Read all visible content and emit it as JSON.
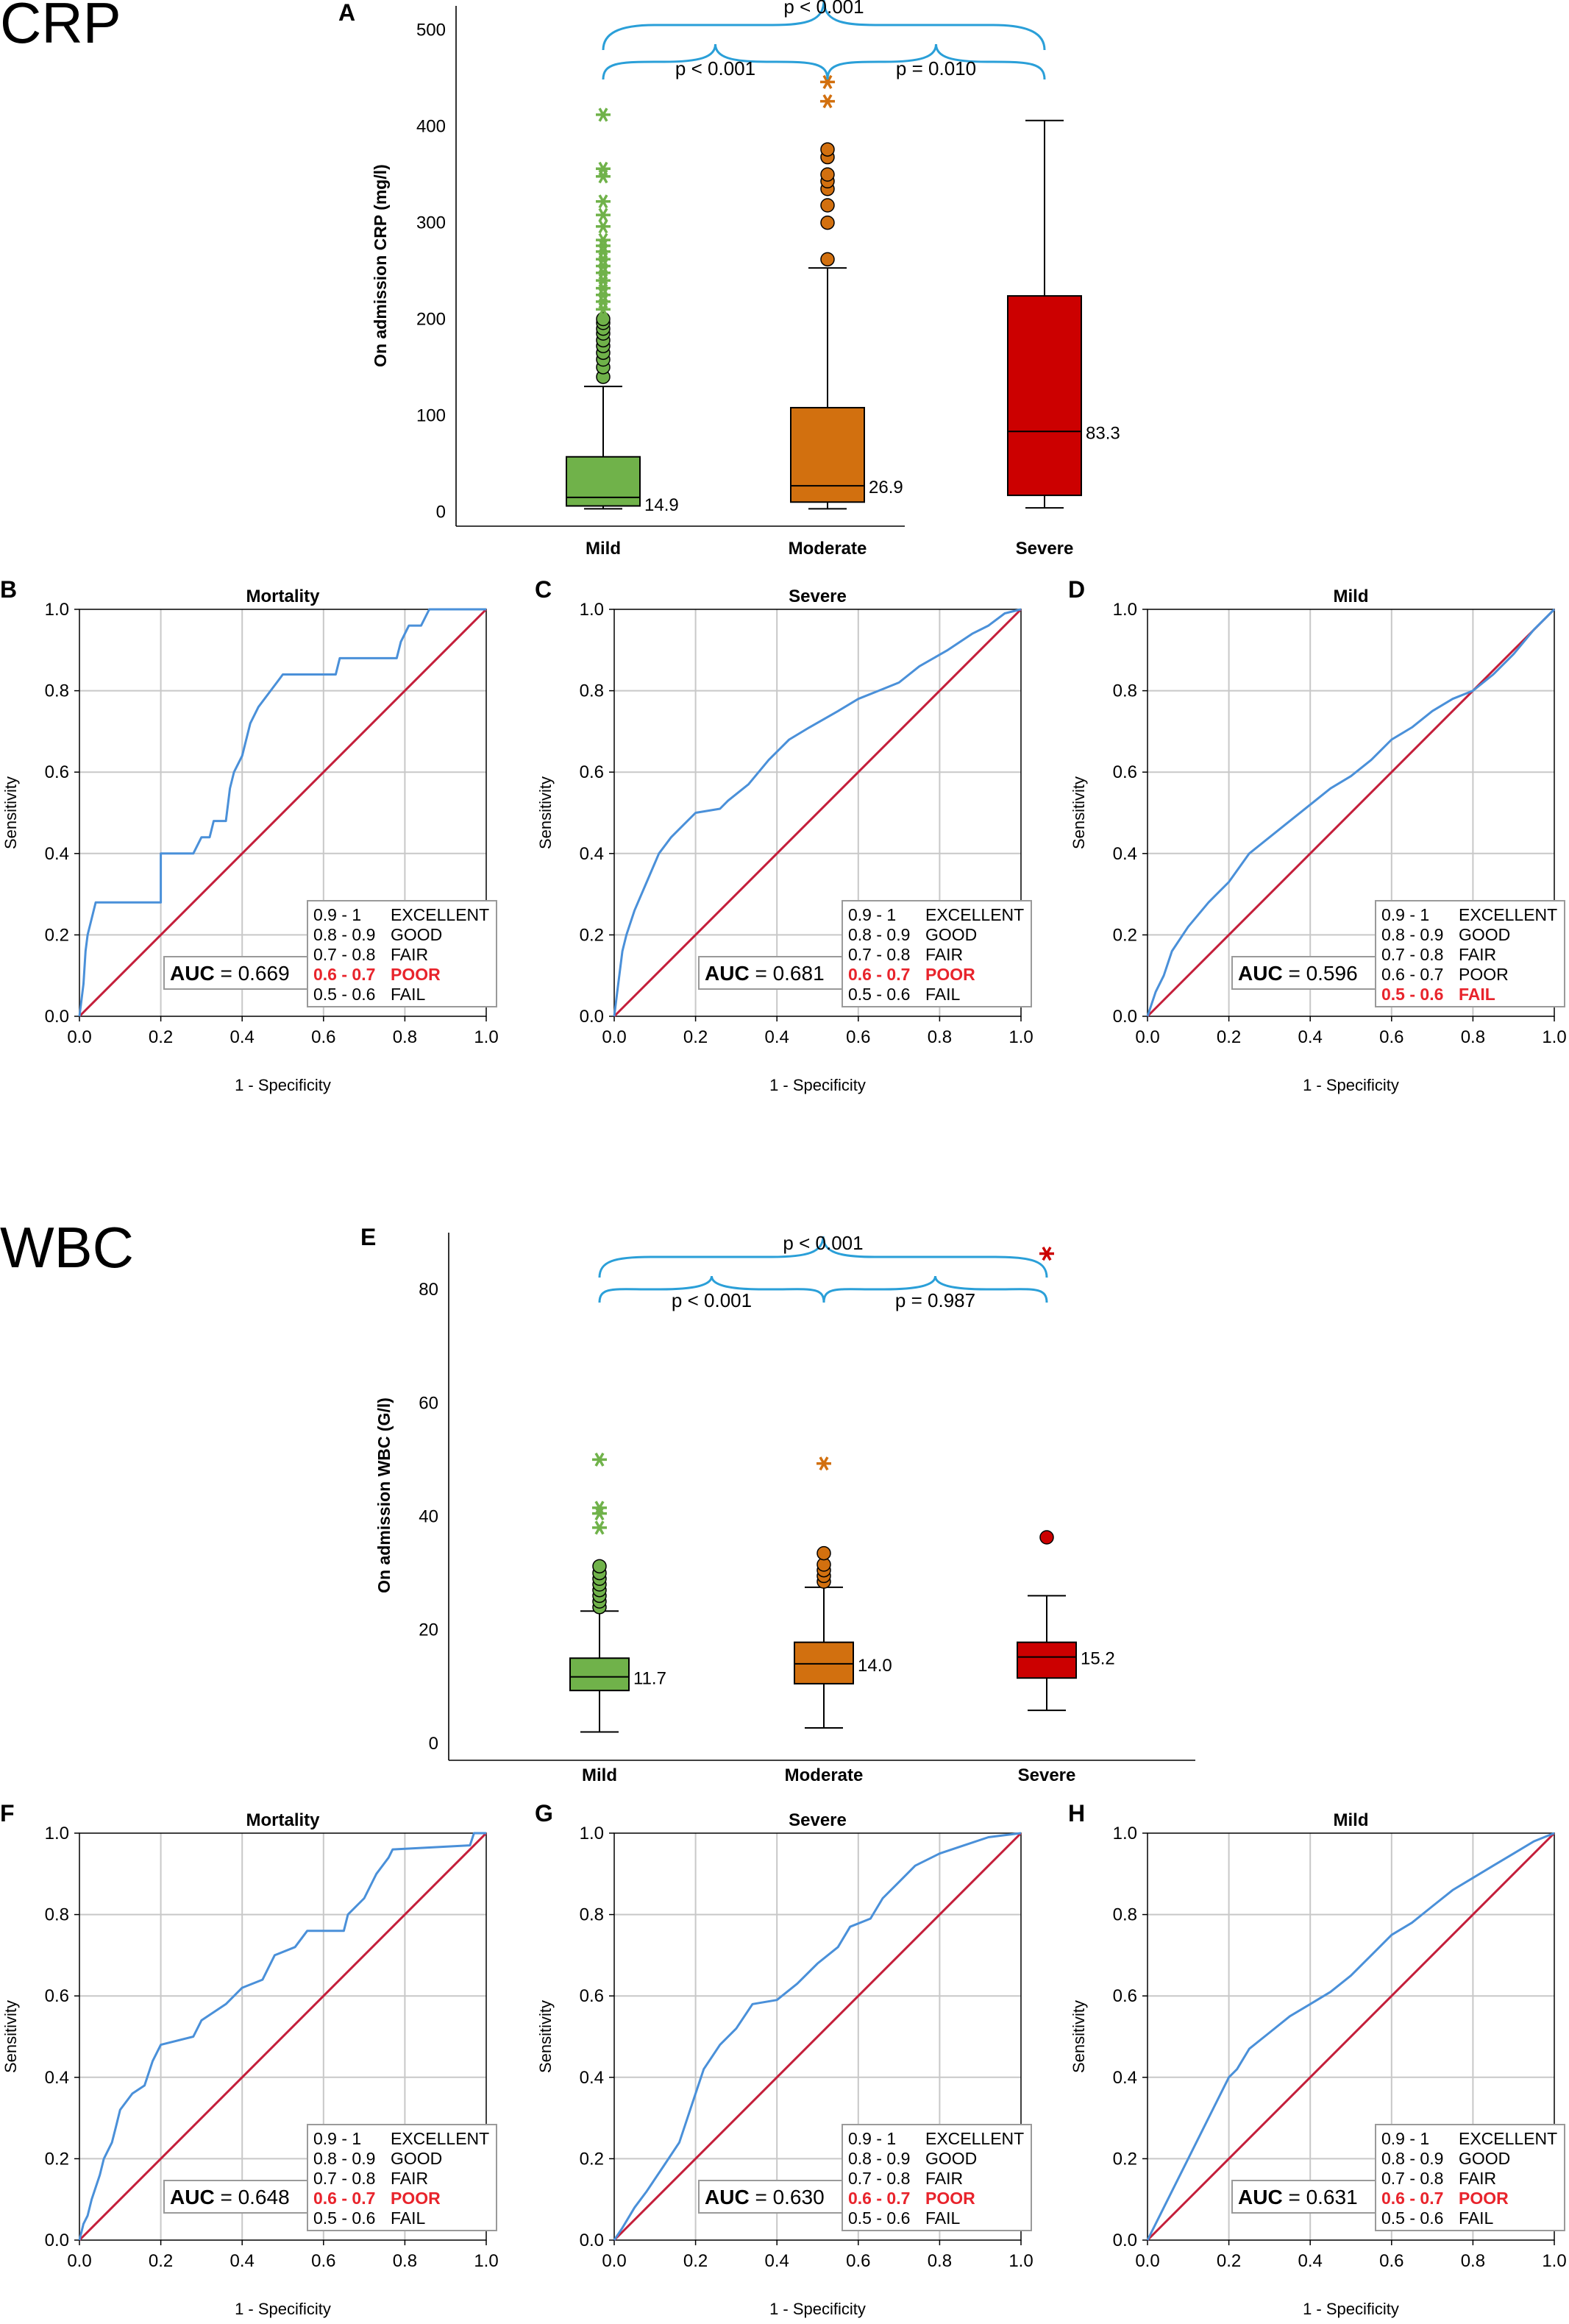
{
  "sections": {
    "crp": "CRP",
    "wbc": "WBC"
  },
  "chart_data": [
    {
      "type": "box",
      "panel": "A",
      "group": "crp",
      "ylabel": "On admission CRP (mg/l)",
      "categories": [
        "Mild",
        "Moderate",
        "Severe"
      ],
      "yticks": [
        0,
        100,
        200,
        300,
        400,
        500
      ],
      "ylim": [
        -15,
        525
      ],
      "colors": [
        "#70b24a",
        "#d2700f",
        "#cc0000"
      ],
      "boxes": [
        {
          "min": 3,
          "q1": 6,
          "median": 14.9,
          "q3": 57,
          "max": 130,
          "median_label": "14.9",
          "outliers": [
            140,
            150,
            158,
            165,
            172,
            178,
            185,
            190,
            196,
            200
          ],
          "extremes": [
            210,
            218,
            225,
            232,
            240,
            248,
            255,
            262,
            270,
            276,
            282,
            296,
            308,
            322,
            348,
            356,
            412
          ]
        },
        {
          "min": 3,
          "q1": 10,
          "median": 26.9,
          "q3": 108,
          "max": 253,
          "median_label": "26.9",
          "outliers": [
            262,
            300,
            318,
            335,
            343,
            350,
            368,
            376
          ],
          "extremes": [
            426,
            446
          ]
        },
        {
          "min": 4,
          "q1": 17,
          "median": 83.3,
          "q3": 224,
          "max": 406,
          "median_label": "83.3",
          "outliers": [],
          "extremes": []
        }
      ],
      "comparisons": [
        {
          "from": 0,
          "to": 2,
          "label": "p < 0.001",
          "level": 2
        },
        {
          "from": 0,
          "to": 1,
          "label": "p < 0.001",
          "level": 1
        },
        {
          "from": 1,
          "to": 2,
          "label": "p = 0.010",
          "level": 1
        }
      ]
    },
    {
      "type": "line",
      "panel": "B",
      "title": "Mortality",
      "auc": "0.669",
      "highlight": 3,
      "xlabel": "1 - Specificity",
      "ylabel": "Sensitivity",
      "xlim": [
        0,
        1
      ],
      "ylim": [
        0,
        1
      ],
      "ticks": [
        "0.0",
        "0.2",
        "0.4",
        "0.6",
        "0.8",
        "1.0"
      ],
      "roc": [
        [
          0,
          0
        ],
        [
          0.01,
          0.08
        ],
        [
          0.015,
          0.16
        ],
        [
          0.02,
          0.2
        ],
        [
          0.03,
          0.24
        ],
        [
          0.04,
          0.28
        ],
        [
          0.2,
          0.28
        ],
        [
          0.2,
          0.4
        ],
        [
          0.28,
          0.4
        ],
        [
          0.3,
          0.44
        ],
        [
          0.32,
          0.44
        ],
        [
          0.33,
          0.48
        ],
        [
          0.36,
          0.48
        ],
        [
          0.37,
          0.56
        ],
        [
          0.38,
          0.6
        ],
        [
          0.4,
          0.64
        ],
        [
          0.42,
          0.72
        ],
        [
          0.44,
          0.76
        ],
        [
          0.47,
          0.8
        ],
        [
          0.5,
          0.84
        ],
        [
          0.63,
          0.84
        ],
        [
          0.64,
          0.88
        ],
        [
          0.78,
          0.88
        ],
        [
          0.79,
          0.92
        ],
        [
          0.81,
          0.96
        ],
        [
          0.84,
          0.96
        ],
        [
          0.86,
          1
        ],
        [
          1,
          1
        ]
      ]
    },
    {
      "type": "line",
      "panel": "C",
      "title": "Severe",
      "auc": "0.681",
      "highlight": 3,
      "xlabel": "1 - Specificity",
      "ylabel": "Sensitivity",
      "xlim": [
        0,
        1
      ],
      "ylim": [
        0,
        1
      ],
      "ticks": [
        "0.0",
        "0.2",
        "0.4",
        "0.6",
        "0.8",
        "1.0"
      ],
      "roc": [
        [
          0,
          0
        ],
        [
          0.01,
          0.08
        ],
        [
          0.02,
          0.16
        ],
        [
          0.03,
          0.2
        ],
        [
          0.05,
          0.26
        ],
        [
          0.08,
          0.33
        ],
        [
          0.11,
          0.4
        ],
        [
          0.14,
          0.44
        ],
        [
          0.16,
          0.46
        ],
        [
          0.2,
          0.5
        ],
        [
          0.26,
          0.51
        ],
        [
          0.28,
          0.53
        ],
        [
          0.33,
          0.57
        ],
        [
          0.38,
          0.63
        ],
        [
          0.43,
          0.68
        ],
        [
          0.48,
          0.71
        ],
        [
          0.55,
          0.75
        ],
        [
          0.6,
          0.78
        ],
        [
          0.65,
          0.8
        ],
        [
          0.7,
          0.82
        ],
        [
          0.75,
          0.86
        ],
        [
          0.82,
          0.9
        ],
        [
          0.88,
          0.94
        ],
        [
          0.92,
          0.96
        ],
        [
          0.96,
          0.99
        ],
        [
          1,
          1
        ]
      ]
    },
    {
      "type": "line",
      "panel": "D",
      "title": "Mild",
      "auc": "0.596",
      "highlight": 4,
      "xlabel": "1 - Specificity",
      "ylabel": "Sensitivity",
      "xlim": [
        0,
        1
      ],
      "ylim": [
        0,
        1
      ],
      "ticks": [
        "0.0",
        "0.2",
        "0.4",
        "0.6",
        "0.8",
        "1.0"
      ],
      "roc": [
        [
          0,
          0
        ],
        [
          0.02,
          0.06
        ],
        [
          0.04,
          0.1
        ],
        [
          0.06,
          0.16
        ],
        [
          0.1,
          0.22
        ],
        [
          0.15,
          0.28
        ],
        [
          0.2,
          0.33
        ],
        [
          0.25,
          0.4
        ],
        [
          0.3,
          0.44
        ],
        [
          0.35,
          0.48
        ],
        [
          0.4,
          0.52
        ],
        [
          0.45,
          0.56
        ],
        [
          0.5,
          0.59
        ],
        [
          0.55,
          0.63
        ],
        [
          0.6,
          0.68
        ],
        [
          0.65,
          0.71
        ],
        [
          0.7,
          0.75
        ],
        [
          0.75,
          0.78
        ],
        [
          0.8,
          0.8
        ],
        [
          0.85,
          0.84
        ],
        [
          0.9,
          0.89
        ],
        [
          0.95,
          0.95
        ],
        [
          1,
          1
        ]
      ]
    },
    {
      "type": "box",
      "panel": "E",
      "group": "wbc",
      "ylabel": "On admission WBC (G/l)",
      "categories": [
        "Mild",
        "Moderate",
        "Severe"
      ],
      "yticks": [
        0,
        20,
        40,
        60,
        80
      ],
      "ylim": [
        -3,
        90
      ],
      "colors": [
        "#70b24a",
        "#d2700f",
        "#cc0000"
      ],
      "boxes": [
        {
          "min": 2,
          "q1": 9.3,
          "median": 11.7,
          "q3": 15,
          "max": 23.3,
          "median_label": "11.7",
          "outliers": [
            24,
            25,
            26,
            27,
            28,
            29,
            30,
            31.2
          ],
          "extremes": [
            38,
            40.5,
            41.5,
            50
          ]
        },
        {
          "min": 2.7,
          "q1": 10.5,
          "median": 14.0,
          "q3": 17.8,
          "max": 27.5,
          "median_label": "14.0",
          "outliers": [
            28.5,
            29.5,
            30.5,
            31.5,
            33.5
          ],
          "extremes": [
            49.3
          ]
        },
        {
          "min": 5.8,
          "q1": 11.5,
          "median": 15.2,
          "q3": 17.8,
          "max": 26,
          "median_label": "15.2",
          "outliers": [
            36.3
          ],
          "extremes": [
            86.3
          ]
        }
      ],
      "comparisons": [
        {
          "from": 0,
          "to": 2,
          "label": "p < 0.001",
          "level": 2
        },
        {
          "from": 0,
          "to": 1,
          "label": "p < 0.001",
          "level": 1
        },
        {
          "from": 1,
          "to": 2,
          "label": "p = 0.987",
          "level": 1
        }
      ]
    },
    {
      "type": "line",
      "panel": "F",
      "title": "Mortality",
      "auc": "0.648",
      "highlight": 3,
      "xlabel": "1 - Specificity",
      "ylabel": "Sensitivity",
      "xlim": [
        0,
        1
      ],
      "ylim": [
        0,
        1
      ],
      "ticks": [
        "0.0",
        "0.2",
        "0.4",
        "0.6",
        "0.8",
        "1.0"
      ],
      "roc": [
        [
          0,
          0
        ],
        [
          0.01,
          0.04
        ],
        [
          0.02,
          0.06
        ],
        [
          0.03,
          0.1
        ],
        [
          0.05,
          0.16
        ],
        [
          0.06,
          0.2
        ],
        [
          0.08,
          0.24
        ],
        [
          0.09,
          0.28
        ],
        [
          0.1,
          0.32
        ],
        [
          0.13,
          0.36
        ],
        [
          0.16,
          0.38
        ],
        [
          0.18,
          0.44
        ],
        [
          0.2,
          0.48
        ],
        [
          0.28,
          0.5
        ],
        [
          0.3,
          0.54
        ],
        [
          0.36,
          0.58
        ],
        [
          0.4,
          0.62
        ],
        [
          0.45,
          0.64
        ],
        [
          0.48,
          0.7
        ],
        [
          0.53,
          0.72
        ],
        [
          0.56,
          0.76
        ],
        [
          0.65,
          0.76
        ],
        [
          0.66,
          0.8
        ],
        [
          0.7,
          0.84
        ],
        [
          0.73,
          0.9
        ],
        [
          0.76,
          0.94
        ],
        [
          0.77,
          0.96
        ],
        [
          0.96,
          0.97
        ],
        [
          0.97,
          1
        ],
        [
          1,
          1
        ]
      ]
    },
    {
      "type": "line",
      "panel": "G",
      "title": "Severe",
      "auc": "0.630",
      "highlight": 3,
      "xlabel": "1 - Specificity",
      "ylabel": "Sensitivity",
      "xlim": [
        0,
        1
      ],
      "ylim": [
        0,
        1
      ],
      "ticks": [
        "0.0",
        "0.2",
        "0.4",
        "0.6",
        "0.8",
        "1.0"
      ],
      "roc": [
        [
          0,
          0
        ],
        [
          0.02,
          0.03
        ],
        [
          0.05,
          0.08
        ],
        [
          0.08,
          0.12
        ],
        [
          0.12,
          0.18
        ],
        [
          0.16,
          0.24
        ],
        [
          0.2,
          0.36
        ],
        [
          0.22,
          0.42
        ],
        [
          0.26,
          0.48
        ],
        [
          0.3,
          0.52
        ],
        [
          0.34,
          0.58
        ],
        [
          0.4,
          0.59
        ],
        [
          0.45,
          0.63
        ],
        [
          0.5,
          0.68
        ],
        [
          0.55,
          0.72
        ],
        [
          0.58,
          0.77
        ],
        [
          0.63,
          0.79
        ],
        [
          0.66,
          0.84
        ],
        [
          0.7,
          0.88
        ],
        [
          0.74,
          0.92
        ],
        [
          0.8,
          0.95
        ],
        [
          0.86,
          0.97
        ],
        [
          0.92,
          0.99
        ],
        [
          1,
          1
        ]
      ]
    },
    {
      "type": "line",
      "panel": "H",
      "title": "Mild",
      "auc": "0.631",
      "highlight": 3,
      "xlabel": "1 - Specificity",
      "ylabel": "Sensitivity",
      "xlim": [
        0,
        1
      ],
      "ylim": [
        0,
        1
      ],
      "ticks": [
        "0.0",
        "0.2",
        "0.4",
        "0.6",
        "0.8",
        "1.0"
      ],
      "roc": [
        [
          0,
          0
        ],
        [
          0.03,
          0.06
        ],
        [
          0.06,
          0.12
        ],
        [
          0.1,
          0.2
        ],
        [
          0.14,
          0.28
        ],
        [
          0.18,
          0.36
        ],
        [
          0.2,
          0.4
        ],
        [
          0.22,
          0.42
        ],
        [
          0.25,
          0.47
        ],
        [
          0.3,
          0.51
        ],
        [
          0.35,
          0.55
        ],
        [
          0.4,
          0.58
        ],
        [
          0.45,
          0.61
        ],
        [
          0.5,
          0.65
        ],
        [
          0.55,
          0.7
        ],
        [
          0.6,
          0.75
        ],
        [
          0.65,
          0.78
        ],
        [
          0.7,
          0.82
        ],
        [
          0.75,
          0.86
        ],
        [
          0.8,
          0.89
        ],
        [
          0.85,
          0.92
        ],
        [
          0.9,
          0.95
        ],
        [
          0.95,
          0.98
        ],
        [
          1,
          1
        ]
      ]
    }
  ],
  "auc_label": "AUC",
  "auc_equals": " = ",
  "legend": [
    {
      "range": "0.9 - 1",
      "grade": "EXCELLENT"
    },
    {
      "range": "0.8 - 0.9",
      "grade": "GOOD"
    },
    {
      "range": "0.7 - 0.8",
      "grade": "FAIR"
    },
    {
      "range": "0.6 - 0.7",
      "grade": "POOR"
    },
    {
      "range": "0.5 - 0.6",
      "grade": "FAIL"
    }
  ],
  "colors": {
    "roc_line": "#4a90d9",
    "reference_line": "#c41e3a",
    "bracket": "#2a9fd8",
    "grid": "#c8c8c8",
    "highlight": "#e8242c"
  }
}
